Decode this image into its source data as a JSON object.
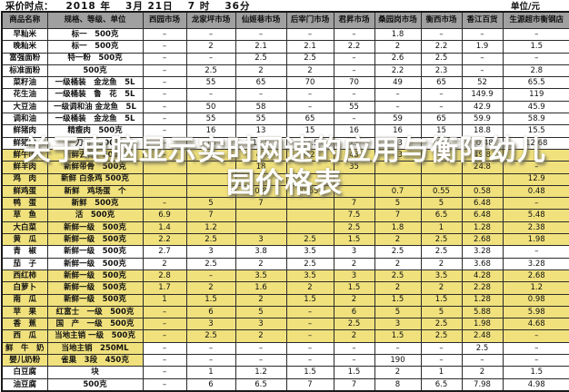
{
  "meta": {
    "label": "采价时点：",
    "datetime": "2018 年　 3月 21日　 7 时　 36分",
    "unit": "单位/元"
  },
  "overlay": {
    "line1": "关于电脑显示实时网速的应用与衡阳幼儿",
    "line2": "园价格表"
  },
  "colors": {
    "highlight": "#f0e17d",
    "header_bg": "#a0a0a0",
    "overlay_text": "#ffffff"
  },
  "table": {
    "columns": [
      "商品名称",
      "规格、等级、单位",
      "西园市场",
      "龙家坪市场",
      "仙姬巷市场",
      "后宰门市场",
      "君昇市场",
      "桑园岗市场",
      "衡西市场",
      "香江百货",
      "生源超市衡钢店"
    ],
    "rows": [
      {
        "name": "早籼米",
        "spec": "标一　500克",
        "hl": "none",
        "values": [
          "–",
          "–",
          "–",
          "–",
          "–",
          "1.8",
          "–",
          "–",
          "–"
        ]
      },
      {
        "name": "晚籼米",
        "spec": "标一　500克",
        "hl": "none",
        "values": [
          "–",
          "2",
          "2.1",
          "2.1",
          "2.2",
          "2",
          "2.2",
          "1.9",
          "1.5"
        ]
      },
      {
        "name": "富强面粉",
        "spec": "特一粉　500克",
        "hl": "none",
        "values": [
          "–",
          "–",
          "2.5",
          "2.5",
          "–",
          "2.6",
          "2.5",
          "–",
          "–"
        ]
      },
      {
        "name": "标准面粉",
        "spec": "500克",
        "hl": "none",
        "values": [
          "–",
          "2.5",
          "2",
          "2",
          "–",
          "2.2",
          "2.3",
          "–",
          "2.8"
        ]
      },
      {
        "name": "菜籽油",
        "spec": "一级桶装　金龙鱼　5L",
        "hl": "none",
        "values": [
          "–",
          "55",
          "65",
          "70",
          "70",
          "49",
          "65",
          "52",
          "65.5"
        ]
      },
      {
        "name": "花生油",
        "spec": "一级桶装　鲁　花　5L",
        "hl": "none",
        "values": [
          "–",
          "–",
          "–",
          "–",
          "–",
          "–",
          "–",
          "149.9",
          "119"
        ]
      },
      {
        "name": "大豆油",
        "spec": "一级调和油 金龙鱼　5L",
        "hl": "none",
        "values": [
          "–",
          "50",
          "58",
          "–",
          "55",
          "–",
          "–",
          "42.9",
          "45.9"
        ]
      },
      {
        "name": "调和油",
        "spec": "一级桶装　金龙鱼　5L",
        "hl": "none",
        "values": [
          "–",
          "55",
          "55",
          "65",
          "–",
          "59",
          "65",
          "59.9",
          "58.9"
        ]
      },
      {
        "name": "鲜猪肉",
        "spec": "精瘦肉　500克",
        "hl": "none",
        "values": [
          "–",
          "16",
          "13",
          "15",
          "16",
          "16",
          "15",
          "18.8",
          "15.5"
        ]
      },
      {
        "name": "鲜猪肉",
        "spec": "一刀切　500克",
        "hl": "none",
        "values": [
          "–",
          "15",
          "11.5",
          "13.5",
          "13",
          "13",
          "13.5",
          "10.48",
          "12.68"
        ]
      },
      {
        "name": "鲜牛肉",
        "spec": "新鲜去骨　500克",
        "hl": "full",
        "values": [
          "–",
          "45",
          "43",
          "42",
          "43",
          "43",
          "42",
          "49.8",
          "–"
        ]
      },
      {
        "name": "鲜羊肉",
        "spec": "新鲜带骨　500克",
        "hl": "full",
        "values": [
          "",
          "",
          "18",
          "",
          "35",
          "",
          "",
          "24.8",
          "–"
        ]
      },
      {
        "name": "鸡　肉",
        "spec": "新鲜 白条鸡 500克",
        "hl": "full",
        "values": [
          "",
          "",
          "",
          "",
          "",
          "",
          "",
          "",
          "12.9"
        ]
      },
      {
        "name": "鲜鸡蛋",
        "spec": "新鲜　鸡场蛋　个",
        "hl": "full",
        "values": [
          "",
          "",
          "0.8",
          "0.65",
          "",
          "0.7",
          "0.55",
          "0.58",
          "0.48"
        ]
      },
      {
        "name": "鸭　蛋",
        "spec": "新鲜　500克",
        "hl": "full",
        "values": [
          "–",
          "5",
          "7",
          "",
          "7",
          "5",
          "5",
          "6.48",
          "–"
        ]
      },
      {
        "name": "草　鱼",
        "spec": "活　500克",
        "hl": "full",
        "values": [
          "6.9",
          "7",
          "",
          "",
          "7.5",
          "7",
          "6.5",
          "6.48",
          "5.48"
        ]
      },
      {
        "name": "大白菜",
        "spec": "新鲜一级　500克",
        "hl": "full",
        "values": [
          "1.4",
          "1.2",
          "",
          "",
          "2.5",
          "1.8",
          "1",
          "1.28",
          "2.38"
        ]
      },
      {
        "name": "黄　瓜",
        "spec": "新鲜一级　500克",
        "hl": "full",
        "values": [
          "2.2",
          "2.5",
          "3",
          "2.5",
          "1.5",
          "2",
          "2.5",
          "2.68",
          "1.98"
        ]
      },
      {
        "name": "青　椒",
        "spec": "新鲜一级　500克",
        "hl": "none",
        "values": [
          "2.7",
          "3",
          "3.8",
          "3.5",
          "3",
          "2.5",
          "2.5",
          "3.28",
          "–"
        ]
      },
      {
        "name": "茄　子",
        "spec": "新鲜一级　500克",
        "hl": "none",
        "values": [
          "2",
          "2.5",
          "2",
          "2.5",
          "2",
          "2",
          "2",
          "3.68",
          "3.28"
        ]
      },
      {
        "name": "西红柿",
        "spec": "新鲜一级　500克",
        "hl": "full",
        "values": [
          "2.8",
          "–",
          "3.5",
          "3.5",
          "3",
          "2.5",
          "3.5",
          "4.28",
          "2.68"
        ]
      },
      {
        "name": "白萝卜",
        "spec": "新鲜一级　500克",
        "hl": "full",
        "values": [
          "1.7",
          "2",
          "1.6",
          "2",
          "1.5",
          "2",
          "2",
          "2.28",
          "1.2"
        ]
      },
      {
        "name": "南　瓜",
        "spec": "新鲜一级　500克",
        "hl": "full",
        "values": [
          "1",
          "1.5",
          "2",
          "1.5",
          "2",
          "1.5",
          "1.5",
          "1.28",
          "0.98"
        ]
      },
      {
        "name": "苹　果",
        "spec": "红富士　一级　500克",
        "hl": "full",
        "values": [
          "–",
          "6",
          "5",
          "–",
          "6",
          "5",
          "5",
          "5.88",
          "5.98"
        ]
      },
      {
        "name": "香　蕉",
        "spec": "国　产　一级　500克",
        "hl": "full",
        "values": [
          "–",
          "3",
          "3",
          "–",
          "2.5",
          "3",
          "2.5",
          "1.98",
          "4.68"
        ]
      },
      {
        "name": "西　瓜",
        "spec": "当地主销 一级　500克",
        "hl": "full",
        "values": [
          "–",
          "2.5",
          "2",
          "–",
          "2",
          "1.5",
          "2.5",
          "2.48",
          "–"
        ]
      },
      {
        "name": "鲜　牛　奶",
        "spec": "当地主销　250ML",
        "hl": "left",
        "values": [
          "–",
          "–",
          "–",
          "–",
          "–",
          "–",
          "–",
          "2.5",
          "–"
        ]
      },
      {
        "name": "婴儿奶粉",
        "spec": "雀巢　3段　450克",
        "hl": "left",
        "values": [
          "–",
          "–",
          "–",
          "–",
          "–",
          "190",
          "–",
          "–",
          "–"
        ]
      },
      {
        "name": "白豆腐",
        "spec": "块",
        "hl": "none",
        "values": [
          "–",
          "1",
          "1.2",
          "1.5",
          "1.5",
          "2",
          "1",
          "2",
          "1.5"
        ]
      },
      {
        "name": "油豆腐",
        "spec": "500克",
        "hl": "none",
        "values": [
          "–",
          "6",
          "6.5",
          "7",
          "7",
          "8",
          "6.5",
          "7.98",
          "4.98"
        ]
      }
    ]
  }
}
